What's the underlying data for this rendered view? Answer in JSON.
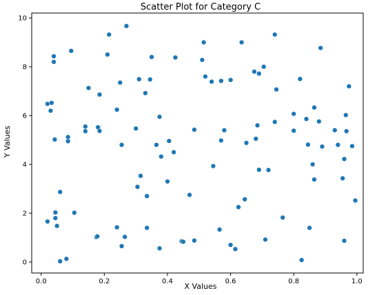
{
  "chart_data": {
    "type": "scatter",
    "title": "Scatter Plot for Category C",
    "xlabel": "X Values",
    "ylabel": "Y Values",
    "xlim": [
      -0.03,
      1.02
    ],
    "ylim": [
      -0.45,
      10.2
    ],
    "xticks": [
      "0.0",
      "0.2",
      "0.4",
      "0.6",
      "0.8",
      "1.0"
    ],
    "yticks": [
      "0",
      "2",
      "4",
      "6",
      "8",
      "10"
    ],
    "grid": false,
    "colors": {
      "marker": "#1f77b4",
      "axis": "#000000",
      "background": "#ffffff"
    },
    "points": [
      [
        0.02,
        6.48
      ],
      [
        0.03,
        6.2
      ],
      [
        0.033,
        6.52
      ],
      [
        0.04,
        8.43
      ],
      [
        0.04,
        8.2
      ],
      [
        0.043,
        5.02
      ],
      [
        0.045,
        1.8
      ],
      [
        0.045,
        2.03
      ],
      [
        0.05,
        1.48
      ],
      [
        0.06,
        2.87
      ],
      [
        0.06,
        0.03
      ],
      [
        0.02,
        1.66
      ],
      [
        0.08,
        0.13
      ],
      [
        0.085,
        5.12
      ],
      [
        0.085,
        4.95
      ],
      [
        0.095,
        8.65
      ],
      [
        0.105,
        2.02
      ],
      [
        0.14,
        5.55
      ],
      [
        0.14,
        5.36
      ],
      [
        0.15,
        7.13
      ],
      [
        0.175,
        1.02
      ],
      [
        0.178,
        1.05
      ],
      [
        0.18,
        5.52
      ],
      [
        0.185,
        6.86
      ],
      [
        0.185,
        5.37
      ],
      [
        0.21,
        8.5
      ],
      [
        0.215,
        9.32
      ],
      [
        0.24,
        6.24
      ],
      [
        0.24,
        1.42
      ],
      [
        0.25,
        7.35
      ],
      [
        0.255,
        4.8
      ],
      [
        0.255,
        0.65
      ],
      [
        0.265,
        1.03
      ],
      [
        0.27,
        9.67
      ],
      [
        0.3,
        5.47
      ],
      [
        0.305,
        3.08
      ],
      [
        0.31,
        7.49
      ],
      [
        0.315,
        3.53
      ],
      [
        0.33,
        6.92
      ],
      [
        0.335,
        2.7
      ],
      [
        0.335,
        1.4
      ],
      [
        0.345,
        7.48
      ],
      [
        0.35,
        8.4
      ],
      [
        0.365,
        4.8
      ],
      [
        0.375,
        5.95
      ],
      [
        0.375,
        0.56
      ],
      [
        0.38,
        4.32
      ],
      [
        0.4,
        3.3
      ],
      [
        0.405,
        4.96
      ],
      [
        0.42,
        4.5
      ],
      [
        0.425,
        8.38
      ],
      [
        0.445,
        0.85
      ],
      [
        0.45,
        0.83
      ],
      [
        0.47,
        2.75
      ],
      [
        0.485,
        5.42
      ],
      [
        0.485,
        0.88
      ],
      [
        0.51,
        8.28
      ],
      [
        0.515,
        9.0
      ],
      [
        0.52,
        7.6
      ],
      [
        0.54,
        7.39
      ],
      [
        0.545,
        3.93
      ],
      [
        0.565,
        1.33
      ],
      [
        0.57,
        7.42
      ],
      [
        0.57,
        4.98
      ],
      [
        0.58,
        5.4
      ],
      [
        0.6,
        7.46
      ],
      [
        0.6,
        0.7
      ],
      [
        0.615,
        0.53
      ],
      [
        0.625,
        2.25
      ],
      [
        0.635,
        9.0
      ],
      [
        0.645,
        2.57
      ],
      [
        0.65,
        4.88
      ],
      [
        0.675,
        7.8
      ],
      [
        0.68,
        5.05
      ],
      [
        0.685,
        5.6
      ],
      [
        0.69,
        3.78
      ],
      [
        0.69,
        7.72
      ],
      [
        0.705,
        8.0
      ],
      [
        0.71,
        0.92
      ],
      [
        0.72,
        3.77
      ],
      [
        0.74,
        9.32
      ],
      [
        0.74,
        5.74
      ],
      [
        0.745,
        7.07
      ],
      [
        0.765,
        1.82
      ],
      [
        0.8,
        6.07
      ],
      [
        0.8,
        5.38
      ],
      [
        0.82,
        7.5
      ],
      [
        0.825,
        0.08
      ],
      [
        0.84,
        5.86
      ],
      [
        0.845,
        4.81
      ],
      [
        0.85,
        1.4
      ],
      [
        0.86,
        4.0
      ],
      [
        0.865,
        6.33
      ],
      [
        0.865,
        3.38
      ],
      [
        0.88,
        5.76
      ],
      [
        0.885,
        8.77
      ],
      [
        0.89,
        4.73
      ],
      [
        0.93,
        5.4
      ],
      [
        0.94,
        4.8
      ],
      [
        0.955,
        3.43
      ],
      [
        0.96,
        4.22
      ],
      [
        0.96,
        0.87
      ],
      [
        0.965,
        6.02
      ],
      [
        0.967,
        5.36
      ],
      [
        0.975,
        7.2
      ],
      [
        0.985,
        4.75
      ],
      [
        0.995,
        2.52
      ]
    ]
  }
}
